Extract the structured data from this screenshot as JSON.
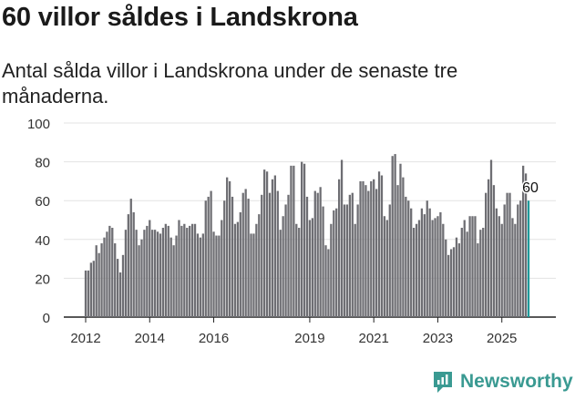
{
  "header": {
    "title": "60 villor såldes i Landskrona",
    "subtitle": "Antal sålda villor i Landskrona under de senaste tre månaderna."
  },
  "brand": {
    "name": "Newsworthy",
    "icon": "newsworthy-logo-icon",
    "color": "#3a9a92"
  },
  "colors": {
    "bar": "#6e6e73",
    "highlight": "#1f9a9a",
    "grid": "#e3e3e3",
    "axis": "#222222"
  },
  "chart_data": {
    "type": "bar",
    "title": "60 villor såldes i Landskrona",
    "subtitle": "Antal sålda villor i Landskrona under de senaste tre månaderna.",
    "xlabel": "",
    "ylabel": "",
    "ylim": [
      0,
      100
    ],
    "yticks": [
      0,
      20,
      40,
      60,
      80,
      100
    ],
    "xticks": [
      "2012",
      "2014",
      "2016",
      "2019",
      "2021",
      "2023",
      "2025"
    ],
    "grid": true,
    "start_month": "2012-01",
    "x_year_range": [
      2012,
      2025
    ],
    "highlight_label": "60",
    "values": [
      24,
      24,
      28,
      29,
      37,
      33,
      38,
      41,
      44,
      47,
      46,
      38,
      30,
      23,
      32,
      45,
      53,
      61,
      54,
      45,
      37,
      40,
      45,
      47,
      50,
      45,
      45,
      44,
      43,
      46,
      48,
      47,
      41,
      37,
      42,
      50,
      47,
      48,
      46,
      47,
      48,
      48,
      43,
      41,
      43,
      60,
      62,
      65,
      44,
      42,
      42,
      50,
      60,
      72,
      70,
      62,
      48,
      49,
      54,
      64,
      66,
      61,
      43,
      43,
      48,
      53,
      63,
      76,
      75,
      64,
      71,
      73,
      65,
      45,
      52,
      58,
      63,
      78,
      78,
      48,
      46,
      80,
      79,
      62,
      50,
      51,
      65,
      64,
      67,
      57,
      37,
      35,
      48,
      55,
      56,
      71,
      81,
      58,
      58,
      63,
      64,
      48,
      58,
      70,
      70,
      68,
      65,
      70,
      71,
      66,
      75,
      73,
      52,
      50,
      58,
      83,
      84,
      68,
      79,
      72,
      62,
      60,
      56,
      46,
      48,
      50,
      56,
      53,
      60,
      56,
      50,
      51,
      52,
      54,
      48,
      40,
      32,
      35,
      36,
      41,
      38,
      46,
      50,
      44,
      52,
      52,
      52,
      38,
      45,
      46,
      64,
      71,
      81,
      68,
      56,
      52,
      48,
      58,
      64,
      64,
      51,
      48,
      58,
      60,
      78,
      74,
      60
    ]
  }
}
